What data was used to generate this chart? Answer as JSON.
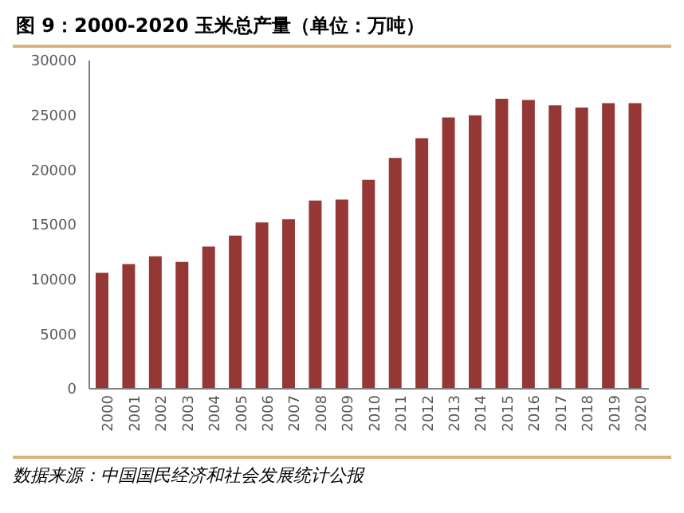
{
  "chart_data": {
    "type": "bar",
    "title": "图 9：2000-2020 玉米总产量（单位：万吨）",
    "categories": [
      "2000",
      "2001",
      "2002",
      "2003",
      "2004",
      "2005",
      "2006",
      "2007",
      "2008",
      "2009",
      "2010",
      "2011",
      "2012",
      "2013",
      "2014",
      "2015",
      "2016",
      "2017",
      "2018",
      "2019",
      "2020"
    ],
    "values": [
      10600,
      11400,
      12100,
      11600,
      13000,
      14000,
      15200,
      15500,
      17200,
      17300,
      19100,
      21100,
      22900,
      24800,
      25000,
      26500,
      26400,
      25900,
      25700,
      26100,
      26100
    ],
    "color": "#953735",
    "ylim": [
      0,
      30000
    ],
    "yticks": [
      0,
      5000,
      10000,
      15000,
      20000,
      25000,
      30000
    ],
    "grid": false,
    "annotations": [
      "数据来源：中国国民经济和社会发展统计公报"
    ]
  }
}
